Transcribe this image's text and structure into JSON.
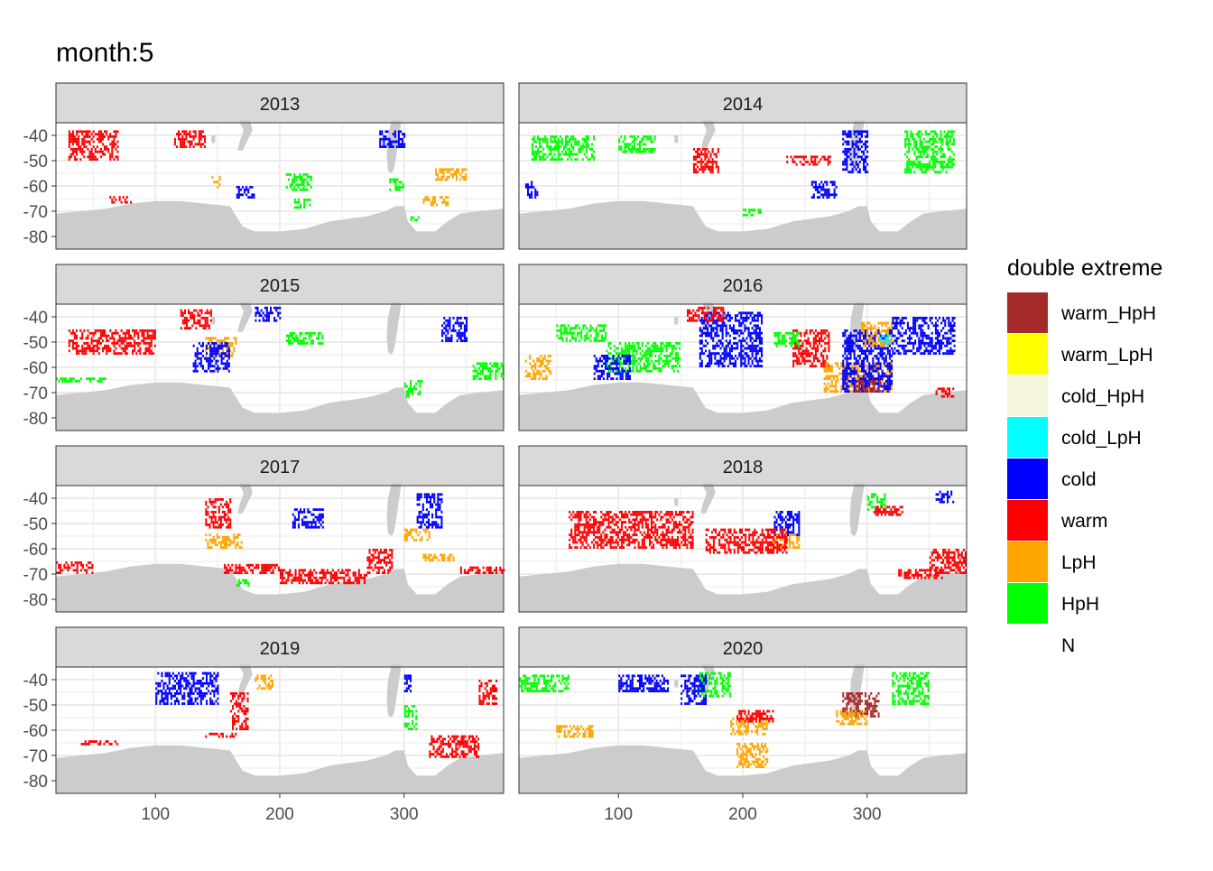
{
  "chart_data": {
    "type": "heatmap",
    "title": "month:5",
    "xlabel": "",
    "ylabel": "",
    "x_ticks": [
      100,
      200,
      300
    ],
    "y_ticks": [
      -40,
      -50,
      -60,
      -70,
      -80
    ],
    "xlim": [
      20,
      380
    ],
    "ylim": [
      -85,
      -35
    ],
    "legend": {
      "title": "double extreme",
      "placement": "right",
      "entries": [
        {
          "label": "warm_HpH",
          "color": "#A52A2A"
        },
        {
          "label": "warm_LpH",
          "color": "#FFFF00"
        },
        {
          "label": "cold_HpH",
          "color": "#F5F5DC"
        },
        {
          "label": "cold_LpH",
          "color": "#00FFFF"
        },
        {
          "label": "cold",
          "color": "#0000FF"
        },
        {
          "label": "warm",
          "color": "#FF0000"
        },
        {
          "label": "LpH",
          "color": "#FFA500"
        },
        {
          "label": "HpH",
          "color": "#00FF00"
        },
        {
          "label": "N",
          "color": "#FFFFFF"
        }
      ]
    },
    "facets": [
      {
        "label": "2013",
        "regions": [
          {
            "category": "HpH",
            "lon": [
              205,
              225
            ],
            "lat": [
              -62,
              -55
            ]
          },
          {
            "category": "HpH",
            "lon": [
              210,
              225
            ],
            "lat": [
              -69,
              -65
            ]
          },
          {
            "category": "LpH",
            "lon": [
              325,
              350
            ],
            "lat": [
              -58,
              -53
            ]
          },
          {
            "category": "LpH",
            "lon": [
              145,
              152
            ],
            "lat": [
              -61,
              -56
            ]
          },
          {
            "category": "HpH",
            "lon": [
              288,
              300
            ],
            "lat": [
              -62,
              -57
            ]
          },
          {
            "category": "LpH",
            "lon": [
              315,
              335
            ],
            "lat": [
              -68,
              -64
            ]
          },
          {
            "category": "HpH",
            "lon": [
              302,
              312
            ],
            "lat": [
              -74,
              -72
            ]
          },
          {
            "category": "warm",
            "lon": [
              30,
              70
            ],
            "lat": [
              -50,
              -38
            ]
          },
          {
            "category": "warm",
            "lon": [
              115,
              140
            ],
            "lat": [
              -45,
              -38
            ]
          },
          {
            "category": "cold",
            "lon": [
              280,
              300
            ],
            "lat": [
              -45,
              -38
            ]
          },
          {
            "category": "warm",
            "lon": [
              60,
              80
            ],
            "lat": [
              -67,
              -64
            ]
          },
          {
            "category": "cold",
            "lon": [
              165,
              180
            ],
            "lat": [
              -65,
              -60
            ]
          }
        ]
      },
      {
        "label": "2014",
        "regions": [
          {
            "category": "HpH",
            "lon": [
              100,
              130
            ],
            "lat": [
              -47,
              -40
            ]
          },
          {
            "category": "HpH",
            "lon": [
              30,
              80
            ],
            "lat": [
              -50,
              -40
            ]
          },
          {
            "category": "warm",
            "lon": [
              160,
              180
            ],
            "lat": [
              -55,
              -45
            ]
          },
          {
            "category": "cold",
            "lon": [
              255,
              275
            ],
            "lat": [
              -65,
              -58
            ]
          },
          {
            "category": "HpH",
            "lon": [
              200,
              215
            ],
            "lat": [
              -72,
              -69
            ]
          },
          {
            "category": "HpH",
            "lon": [
              330,
              370
            ],
            "lat": [
              -55,
              -38
            ]
          },
          {
            "category": "cold",
            "lon": [
              280,
              300
            ],
            "lat": [
              -55,
              -38
            ]
          },
          {
            "category": "warm",
            "lon": [
              235,
              270
            ],
            "lat": [
              -52,
              -48
            ]
          },
          {
            "category": "cold",
            "lon": [
              25,
              35
            ],
            "lat": [
              -65,
              -58
            ]
          }
        ]
      },
      {
        "label": "2015",
        "regions": [
          {
            "category": "LpH",
            "lon": [
              140,
              165
            ],
            "lat": [
              -56,
              -48
            ]
          },
          {
            "category": "cold",
            "lon": [
              130,
              160
            ],
            "lat": [
              -62,
              -50
            ]
          },
          {
            "category": "cold",
            "lon": [
              180,
              200
            ],
            "lat": [
              -42,
              -36
            ]
          },
          {
            "category": "HpH",
            "lon": [
              205,
              235
            ],
            "lat": [
              -51,
              -46
            ]
          },
          {
            "category": "HpH",
            "lon": [
              355,
              380
            ],
            "lat": [
              -65,
              -58
            ]
          },
          {
            "category": "warm",
            "lon": [
              120,
              145
            ],
            "lat": [
              -45,
              -37
            ]
          },
          {
            "category": "warm",
            "lon": [
              30,
              100
            ],
            "lat": [
              -55,
              -45
            ]
          },
          {
            "category": "HpH",
            "lon": [
              20,
              60
            ],
            "lat": [
              -66,
              -64
            ]
          },
          {
            "category": "HpH",
            "lon": [
              300,
              315
            ],
            "lat": [
              -72,
              -65
            ]
          },
          {
            "category": "cold",
            "lon": [
              330,
              350
            ],
            "lat": [
              -50,
              -40
            ]
          }
        ]
      },
      {
        "label": "2016",
        "regions": [
          {
            "category": "HpH",
            "lon": [
              90,
              150
            ],
            "lat": [
              -62,
              -50
            ]
          },
          {
            "category": "cold",
            "lon": [
              80,
              110
            ],
            "lat": [
              -65,
              -55
            ]
          },
          {
            "category": "cold",
            "lon": [
              165,
              215
            ],
            "lat": [
              -60,
              -38
            ]
          },
          {
            "category": "warm",
            "lon": [
              155,
              185
            ],
            "lat": [
              -42,
              -36
            ]
          },
          {
            "category": "warm",
            "lon": [
              240,
              270
            ],
            "lat": [
              -60,
              -45
            ]
          },
          {
            "category": "HpH",
            "lon": [
              225,
              245
            ],
            "lat": [
              -52,
              -46
            ]
          },
          {
            "category": "LpH",
            "lon": [
              265,
              320
            ],
            "lat": [
              -70,
              -58
            ]
          },
          {
            "category": "cold",
            "lon": [
              280,
              320
            ],
            "lat": [
              -70,
              -45
            ]
          },
          {
            "category": "LpH",
            "lon": [
              295,
              320
            ],
            "lat": [
              -52,
              -42
            ]
          },
          {
            "category": "cold_LpH",
            "lon": [
              310,
              320
            ],
            "lat": [
              -51,
              -47
            ]
          },
          {
            "category": "warm_HpH",
            "lon": [
              290,
              310
            ],
            "lat": [
              -70,
              -65
            ]
          },
          {
            "category": "LpH",
            "lon": [
              25,
              45
            ],
            "lat": [
              -65,
              -55
            ]
          },
          {
            "category": "cold",
            "lon": [
              320,
              370
            ],
            "lat": [
              -55,
              -40
            ]
          },
          {
            "category": "warm",
            "lon": [
              355,
              370
            ],
            "lat": [
              -72,
              -68
            ]
          },
          {
            "category": "HpH",
            "lon": [
              50,
              90
            ],
            "lat": [
              -50,
              -43
            ]
          }
        ]
      },
      {
        "label": "2017",
        "regions": [
          {
            "category": "warm",
            "lon": [
              200,
              270
            ],
            "lat": [
              -74,
              -68
            ]
          },
          {
            "category": "warm",
            "lon": [
              155,
              200
            ],
            "lat": [
              -70,
              -66
            ]
          },
          {
            "category": "warm",
            "lon": [
              270,
              290
            ],
            "lat": [
              -70,
              -60
            ]
          },
          {
            "category": "warm",
            "lon": [
              20,
              50
            ],
            "lat": [
              -70,
              -65
            ]
          },
          {
            "category": "warm",
            "lon": [
              345,
              380
            ],
            "lat": [
              -70,
              -67
            ]
          },
          {
            "category": "LpH",
            "lon": [
              140,
              170
            ],
            "lat": [
              -60,
              -54
            ]
          },
          {
            "category": "LpH",
            "lon": [
              315,
              340
            ],
            "lat": [
              -65,
              -62
            ]
          },
          {
            "category": "LpH",
            "lon": [
              300,
              320
            ],
            "lat": [
              -57,
              -52
            ]
          },
          {
            "category": "cold",
            "lon": [
              310,
              330
            ],
            "lat": [
              -52,
              -38
            ]
          },
          {
            "category": "cold",
            "lon": [
              210,
              235
            ],
            "lat": [
              -52,
              -44
            ]
          },
          {
            "category": "HpH",
            "lon": [
              165,
              175
            ],
            "lat": [
              -75,
              -72
            ]
          },
          {
            "category": "warm",
            "lon": [
              140,
              160
            ],
            "lat": [
              -52,
              -40
            ]
          }
        ]
      },
      {
        "label": "2018",
        "regions": [
          {
            "category": "warm",
            "lon": [
              350,
              380
            ],
            "lat": [
              -70,
              -60
            ]
          },
          {
            "category": "warm",
            "lon": [
              325,
              360
            ],
            "lat": [
              -72,
              -68
            ]
          },
          {
            "category": "cold",
            "lon": [
              225,
              245
            ],
            "lat": [
              -55,
              -45
            ]
          },
          {
            "category": "LpH",
            "lon": [
              222,
              245
            ],
            "lat": [
              -60,
              -54
            ]
          },
          {
            "category": "HpH",
            "lon": [
              300,
              315
            ],
            "lat": [
              -45,
              -38
            ]
          },
          {
            "category": "warm",
            "lon": [
              305,
              330
            ],
            "lat": [
              -47,
              -43
            ]
          },
          {
            "category": "cold",
            "lon": [
              355,
              370
            ],
            "lat": [
              -42,
              -37
            ]
          },
          {
            "category": "warm",
            "lon": [
              60,
              160
            ],
            "lat": [
              -60,
              -45
            ]
          },
          {
            "category": "warm",
            "lon": [
              170,
              235
            ],
            "lat": [
              -62,
              -52
            ]
          }
        ]
      },
      {
        "label": "2019",
        "regions": [
          {
            "category": "warm",
            "lon": [
              320,
              360
            ],
            "lat": [
              -71,
              -62
            ]
          },
          {
            "category": "cold",
            "lon": [
              100,
              150
            ],
            "lat": [
              -50,
              -37
            ]
          },
          {
            "category": "LpH",
            "lon": [
              180,
              195
            ],
            "lat": [
              -44,
              -38
            ]
          },
          {
            "category": "warm",
            "lon": [
              160,
              175
            ],
            "lat": [
              -60,
              -45
            ]
          },
          {
            "category": "warm",
            "lon": [
              40,
              70
            ],
            "lat": [
              -66,
              -64
            ]
          },
          {
            "category": "warm",
            "lon": [
              140,
              165
            ],
            "lat": [
              -63,
              -61
            ]
          },
          {
            "category": "HpH",
            "lon": [
              300,
              310
            ],
            "lat": [
              -60,
              -50
            ]
          },
          {
            "category": "cold",
            "lon": [
              300,
              305
            ],
            "lat": [
              -45,
              -38
            ]
          },
          {
            "category": "warm",
            "lon": [
              360,
              375
            ],
            "lat": [
              -50,
              -40
            ]
          }
        ]
      },
      {
        "label": "2020",
        "regions": [
          {
            "category": "LpH",
            "lon": [
              50,
              80
            ],
            "lat": [
              -63,
              -58
            ]
          },
          {
            "category": "HpH",
            "lon": [
              165,
              190
            ],
            "lat": [
              -47,
              -37
            ]
          },
          {
            "category": "LpH",
            "lon": [
              190,
              220
            ],
            "lat": [
              -62,
              -55
            ]
          },
          {
            "category": "LpH",
            "lon": [
              195,
              220
            ],
            "lat": [
              -75,
              -65
            ]
          },
          {
            "category": "warm_HpH",
            "lon": [
              280,
              310
            ],
            "lat": [
              -55,
              -45
            ]
          },
          {
            "category": "HpH",
            "lon": [
              320,
              350
            ],
            "lat": [
              -50,
              -37
            ]
          },
          {
            "category": "cold",
            "lon": [
              100,
              140
            ],
            "lat": [
              -45,
              -38
            ]
          },
          {
            "category": "cold",
            "lon": [
              150,
              170
            ],
            "lat": [
              -50,
              -38
            ]
          },
          {
            "category": "warm",
            "lon": [
              195,
              225
            ],
            "lat": [
              -57,
              -52
            ]
          },
          {
            "category": "HpH",
            "lon": [
              20,
              60
            ],
            "lat": [
              -45,
              -38
            ]
          },
          {
            "category": "LpH",
            "lon": [
              275,
              300
            ],
            "lat": [
              -58,
              -52
            ]
          }
        ]
      }
    ]
  }
}
